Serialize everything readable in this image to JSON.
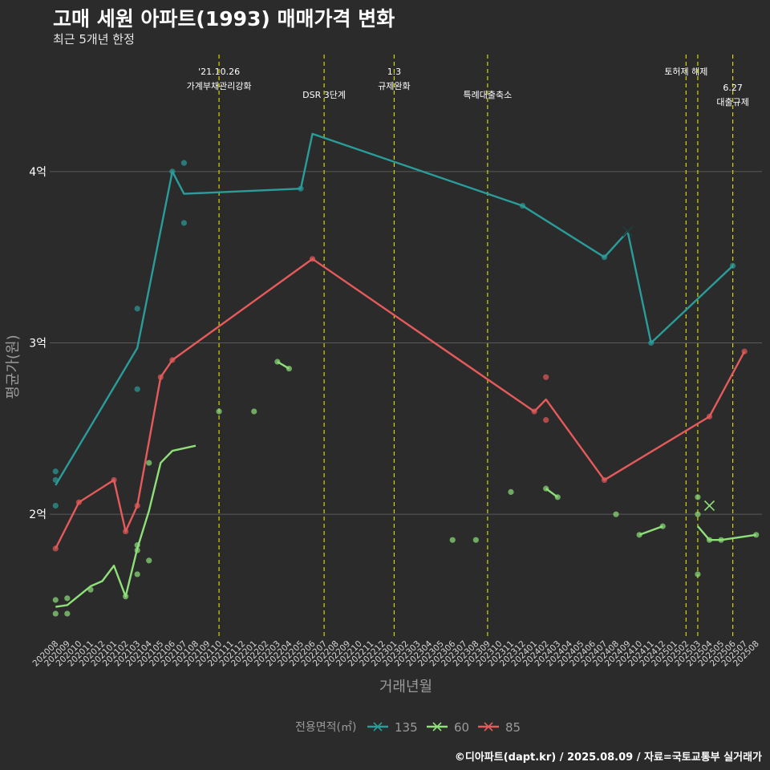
{
  "title": "고매 세원 아파트(1993) 매매가격 변화",
  "subtitle": "최근 5개년 한정",
  "caption": "©디아파트(dapt.kr) / 2025.08.09 / 자료=국토교통부 실거래가",
  "colors": {
    "background": "#2b2b2b",
    "grid": "#5a5a5a",
    "vline": "#d4d400",
    "s135": "#2a9d9a",
    "s60": "#8fe07a",
    "s85": "#e55a5a"
  },
  "chart_data": {
    "type": "line",
    "xlabel": "거래년월",
    "ylabel": "평균가(원)",
    "ylim": [
      1.28,
      4.72
    ],
    "yticks": [
      {
        "value": 2,
        "label": "2억"
      },
      {
        "value": 3,
        "label": "3억"
      },
      {
        "value": 4,
        "label": "4억"
      }
    ],
    "grid": true,
    "legend": {
      "title": "전용면적(㎡)",
      "position": "bottom"
    },
    "categories": [
      "202008",
      "202009",
      "202010",
      "202011",
      "202012",
      "202101",
      "202102",
      "202103",
      "202104",
      "202105",
      "202106",
      "202107",
      "202108",
      "202109",
      "202110",
      "202111",
      "202112",
      "202201",
      "202202",
      "202203",
      "202204",
      "202205",
      "202206",
      "202207",
      "202208",
      "202209",
      "202210",
      "202211",
      "202212",
      "202301",
      "202302",
      "202303",
      "202304",
      "202305",
      "202306",
      "202307",
      "202308",
      "202309",
      "202310",
      "202311",
      "202312",
      "202401",
      "202402",
      "202403",
      "202404",
      "202405",
      "202406",
      "202407",
      "202408",
      "202409",
      "202410",
      "202411",
      "202412",
      "202501",
      "202502",
      "202503",
      "202504",
      "202505",
      "202506",
      "202507",
      "202508"
    ],
    "series": [
      {
        "name": "135",
        "color": "#2a9d9a",
        "line": [
          [
            "202008",
            2.17
          ],
          [
            "202103",
            2.97
          ],
          [
            "202106",
            4.0
          ],
          [
            "202107",
            3.87
          ],
          [
            "202205",
            3.9
          ],
          [
            "202206",
            4.22
          ],
          [
            "202312",
            3.8
          ],
          [
            "202407",
            3.5
          ],
          [
            "202409",
            3.65
          ],
          [
            "202411",
            3.0
          ],
          [
            "202506",
            3.45
          ]
        ],
        "points": [
          [
            "202008",
            2.25
          ],
          [
            "202008",
            2.2
          ],
          [
            "202008",
            2.05
          ],
          [
            "202103",
            3.2
          ],
          [
            "202103",
            2.73
          ],
          [
            "202106",
            4.0
          ],
          [
            "202107",
            4.05
          ],
          [
            "202107",
            3.7
          ],
          [
            "202205",
            3.9
          ],
          [
            "202312",
            3.8
          ],
          [
            "202407",
            3.5
          ],
          [
            "202411",
            3.0
          ],
          [
            "202506",
            3.45
          ]
        ],
        "cancelled": [
          [
            "202409",
            3.65
          ]
        ]
      },
      {
        "name": "60",
        "color": "#8fe07a",
        "segments": [
          [
            [
              "202008",
              1.46
            ],
            [
              "202009",
              1.47
            ],
            [
              "202011",
              1.58
            ],
            [
              "202012",
              1.61
            ],
            [
              "202101",
              1.7
            ],
            [
              "202102",
              1.52
            ],
            [
              "202103",
              1.8
            ],
            [
              "202104",
              2.02
            ],
            [
              "202105",
              2.3
            ],
            [
              "202106",
              2.37
            ],
            [
              "202108",
              2.4
            ]
          ],
          [
            [
              "202203",
              2.89
            ],
            [
              "202204",
              2.85
            ]
          ],
          [
            [
              "202402",
              2.15
            ],
            [
              "202403",
              2.1
            ]
          ],
          [
            [
              "202410",
              1.88
            ],
            [
              "202412",
              1.93
            ]
          ],
          [
            [
              "202503",
              1.93
            ],
            [
              "202504",
              1.85
            ],
            [
              "202505",
              1.85
            ],
            [
              "202508",
              1.88
            ]
          ]
        ],
        "points": [
          [
            "202008",
            1.5
          ],
          [
            "202008",
            1.42
          ],
          [
            "202009",
            1.51
          ],
          [
            "202009",
            1.42
          ],
          [
            "202011",
            1.56
          ],
          [
            "202102",
            1.52
          ],
          [
            "202103",
            1.82
          ],
          [
            "202103",
            1.79
          ],
          [
            "202103",
            1.65
          ],
          [
            "202104",
            2.3
          ],
          [
            "202104",
            1.73
          ],
          [
            "202110",
            2.6
          ],
          [
            "202201",
            2.6
          ],
          [
            "202203",
            2.89
          ],
          [
            "202204",
            2.85
          ],
          [
            "202306",
            1.85
          ],
          [
            "202308",
            1.85
          ],
          [
            "202311",
            2.13
          ],
          [
            "202402",
            2.15
          ],
          [
            "202403",
            2.1
          ],
          [
            "202408",
            2.0
          ],
          [
            "202410",
            1.88
          ],
          [
            "202412",
            1.93
          ],
          [
            "202503",
            2.1
          ],
          [
            "202503",
            2.0
          ],
          [
            "202503",
            1.65
          ],
          [
            "202504",
            1.85
          ],
          [
            "202505",
            1.85
          ],
          [
            "202508",
            1.88
          ]
        ],
        "cancelled": [
          [
            "202504",
            2.05
          ]
        ]
      },
      {
        "name": "85",
        "color": "#e55a5a",
        "line": [
          [
            "202008",
            1.8
          ],
          [
            "202010",
            2.07
          ],
          [
            "202101",
            2.2
          ],
          [
            "202102",
            1.9
          ],
          [
            "202103",
            2.05
          ],
          [
            "202105",
            2.8
          ],
          [
            "202106",
            2.9
          ],
          [
            "202206",
            3.49
          ],
          [
            "202401",
            2.6
          ],
          [
            "202402",
            2.67
          ],
          [
            "202407",
            2.2
          ],
          [
            "202504",
            2.57
          ],
          [
            "202507",
            2.95
          ]
        ],
        "points": [
          [
            "202008",
            1.8
          ],
          [
            "202010",
            2.07
          ],
          [
            "202101",
            2.2
          ],
          [
            "202102",
            1.9
          ],
          [
            "202103",
            2.05
          ],
          [
            "202105",
            2.8
          ],
          [
            "202106",
            2.9
          ],
          [
            "202206",
            3.49
          ],
          [
            "202401",
            2.6
          ],
          [
            "202402",
            2.8
          ],
          [
            "202402",
            2.55
          ],
          [
            "202407",
            2.2
          ],
          [
            "202504",
            2.57
          ],
          [
            "202507",
            2.95
          ]
        ],
        "cancelled": []
      }
    ],
    "annotations": [
      {
        "x": "202110",
        "lines": [
          "'21.10.26",
          "가계부채관리강화"
        ],
        "level": 1
      },
      {
        "x": "202207",
        "lines": [
          "DSR 3단계"
        ],
        "level": 2
      },
      {
        "x": "202301",
        "lines": [
          "1.3",
          "규제완화"
        ],
        "level": 1
      },
      {
        "x": "202309",
        "lines": [
          "특례대출축소"
        ],
        "level": 2
      },
      {
        "x": "202502",
        "lines": [
          "토허제 해제"
        ],
        "level": 1
      },
      {
        "x": "202503",
        "lines": [],
        "level": 1
      },
      {
        "x": "202506",
        "lines": [
          "6.27",
          "대출규제"
        ],
        "level": 3
      }
    ]
  }
}
